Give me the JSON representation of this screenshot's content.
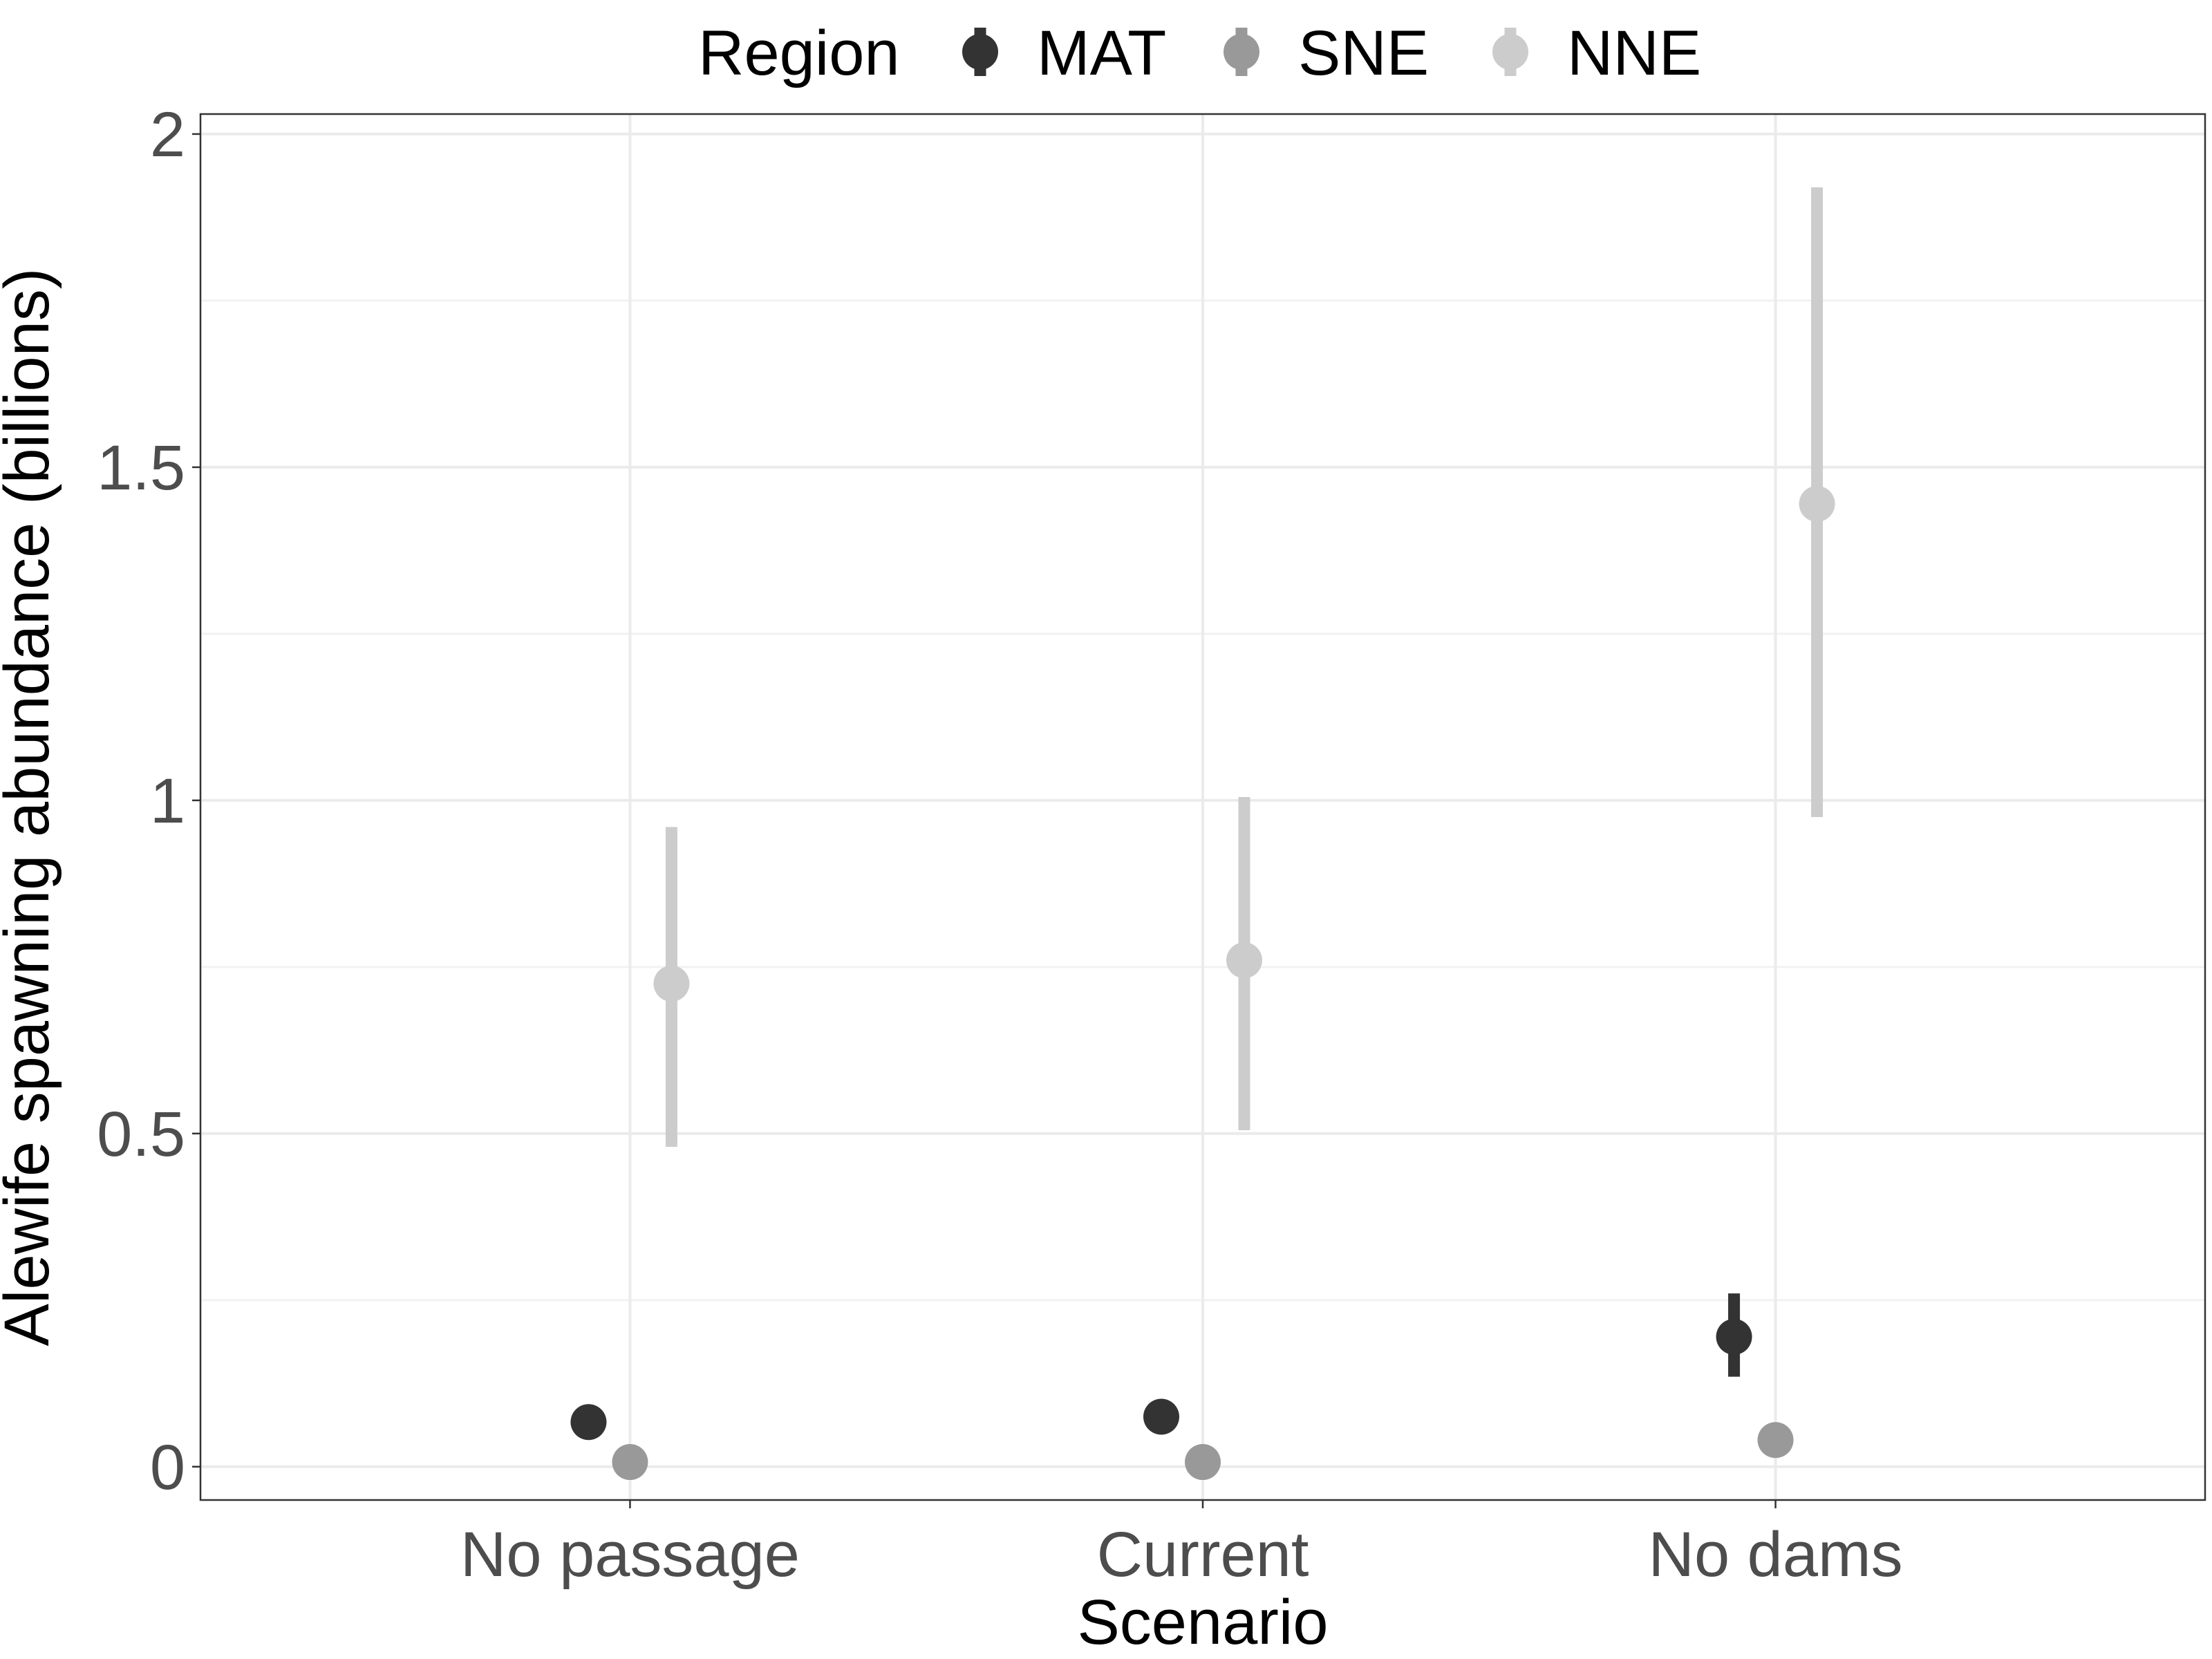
{
  "chart_data": {
    "type": "scatter",
    "subtype": "point-range",
    "xlabel": "Scenario",
    "ylabel": "Alewife spawning abundance (billions)",
    "categories": [
      "No passage",
      "Current",
      "No dams"
    ],
    "ylim": [
      -0.05,
      2.03
    ],
    "yticks": [
      0,
      0.5,
      1,
      1.5,
      2
    ],
    "ytick_labels": [
      "0",
      "0.5",
      "1",
      "1.5",
      "2"
    ],
    "grid": true,
    "legend": {
      "title": "Region",
      "placement": "top"
    },
    "series": [
      {
        "name": "MAT",
        "color": "#333333",
        "values": [
          0.067,
          0.075,
          0.195
        ],
        "lower": [
          0.062,
          0.068,
          0.135
        ],
        "upper": [
          0.072,
          0.082,
          0.26
        ]
      },
      {
        "name": "SNE",
        "color": "#999999",
        "values": [
          0.007,
          0.007,
          0.04
        ],
        "lower": [
          0.005,
          0.005,
          0.034
        ],
        "upper": [
          0.009,
          0.009,
          0.046
        ]
      },
      {
        "name": "NNE",
        "color": "#cccccc",
        "values": [
          0.725,
          0.76,
          1.445
        ],
        "lower": [
          0.48,
          0.505,
          0.975
        ],
        "upper": [
          0.96,
          1.005,
          1.92
        ]
      }
    ]
  }
}
